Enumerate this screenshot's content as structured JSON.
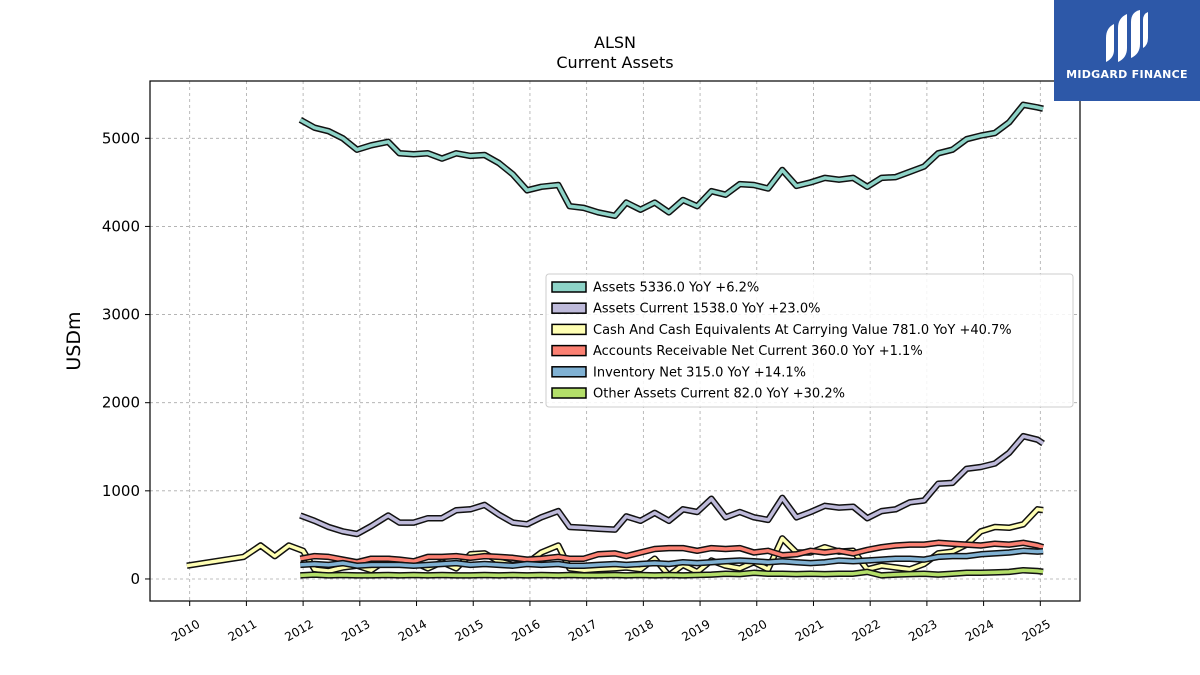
{
  "brand": {
    "name": "MIDGARD FINANCE",
    "color": "#2d58a8"
  },
  "chart_data": {
    "type": "line",
    "title": "ALSN",
    "subtitle": "Current  Assets",
    "ylabel": "USDm",
    "xlabel": "",
    "ylim": [
      -250,
      5650
    ],
    "xlim": [
      2009.3,
      2025.7
    ],
    "yticks": [
      0,
      1000,
      2000,
      3000,
      4000,
      5000
    ],
    "xticks": [
      "2010",
      "2011",
      "2012",
      "2013",
      "2014",
      "2015",
      "2016",
      "2017",
      "2018",
      "2019",
      "2020",
      "2021",
      "2022",
      "2023",
      "2024",
      "2025"
    ],
    "grid": true,
    "legend_position": "center-right",
    "series": [
      {
        "name": "Assets  5336.0 YoY +6.2%",
        "color": "#8dd3c7",
        "x": [
          2011.95,
          2012.2,
          2012.45,
          2012.7,
          2012.95,
          2013.2,
          2013.5,
          2013.7,
          2013.95,
          2014.2,
          2014.45,
          2014.7,
          2014.95,
          2015.2,
          2015.45,
          2015.7,
          2015.95,
          2016.2,
          2016.5,
          2016.7,
          2016.95,
          2017.2,
          2017.5,
          2017.7,
          2017.95,
          2018.2,
          2018.45,
          2018.7,
          2018.95,
          2019.2,
          2019.45,
          2019.7,
          2019.95,
          2020.2,
          2020.45,
          2020.7,
          2020.95,
          2021.2,
          2021.45,
          2021.7,
          2021.95,
          2022.2,
          2022.45,
          2022.7,
          2022.95,
          2023.2,
          2023.45,
          2023.7,
          2023.95,
          2024.2,
          2024.45,
          2024.7,
          2024.95,
          2025.05
        ],
        "values": [
          5210,
          5120,
          5080,
          5000,
          4870,
          4920,
          4960,
          4830,
          4820,
          4830,
          4770,
          4830,
          4800,
          4810,
          4720,
          4590,
          4410,
          4450,
          4470,
          4230,
          4210,
          4160,
          4120,
          4270,
          4190,
          4270,
          4160,
          4300,
          4230,
          4400,
          4360,
          4480,
          4470,
          4430,
          4640,
          4460,
          4500,
          4550,
          4530,
          4550,
          4450,
          4550,
          4560,
          4620,
          4680,
          4830,
          4870,
          4990,
          5030,
          5060,
          5180,
          5380,
          5350,
          5336
        ]
      },
      {
        "name": "Assets Current  1538.0 YoY +23.0%",
        "color": "#bebada",
        "x": [
          2011.95,
          2012.2,
          2012.45,
          2012.7,
          2012.95,
          2013.2,
          2013.5,
          2013.7,
          2013.95,
          2014.2,
          2014.45,
          2014.7,
          2014.95,
          2015.2,
          2015.45,
          2015.7,
          2015.95,
          2016.2,
          2016.5,
          2016.7,
          2016.95,
          2017.2,
          2017.5,
          2017.7,
          2017.95,
          2018.2,
          2018.45,
          2018.7,
          2018.95,
          2019.2,
          2019.45,
          2019.7,
          2019.95,
          2020.2,
          2020.45,
          2020.7,
          2020.95,
          2021.2,
          2021.45,
          2021.7,
          2021.95,
          2022.2,
          2022.45,
          2022.7,
          2022.95,
          2023.2,
          2023.45,
          2023.7,
          2023.95,
          2024.2,
          2024.45,
          2024.7,
          2024.95,
          2025.05
        ],
        "values": [
          720,
          660,
          590,
          540,
          510,
          600,
          720,
          640,
          640,
          690,
          690,
          780,
          790,
          840,
          730,
          640,
          620,
          700,
          770,
          590,
          580,
          570,
          560,
          710,
          660,
          750,
          660,
          790,
          760,
          910,
          700,
          760,
          700,
          670,
          920,
          700,
          760,
          830,
          810,
          820,
          690,
          770,
          790,
          870,
          890,
          1080,
          1090,
          1250,
          1270,
          1310,
          1430,
          1620,
          1580,
          1538
        ]
      },
      {
        "name": "Cash And Cash Equivalents At Carrying Value  781.0 YoY +40.7%",
        "color": "#ffffb3",
        "x": [
          2009.95,
          2010.95,
          2011.25,
          2011.5,
          2011.75,
          2012.0,
          2012.2,
          2012.45,
          2012.7,
          2012.95,
          2013.2,
          2013.5,
          2013.7,
          2013.95,
          2014.2,
          2014.45,
          2014.7,
          2014.95,
          2015.2,
          2015.45,
          2015.7,
          2015.95,
          2016.2,
          2016.5,
          2016.7,
          2016.95,
          2017.2,
          2017.5,
          2017.7,
          2017.95,
          2018.2,
          2018.45,
          2018.7,
          2018.95,
          2019.2,
          2019.45,
          2019.7,
          2019.95,
          2020.2,
          2020.45,
          2020.7,
          2020.95,
          2021.2,
          2021.45,
          2021.7,
          2021.95,
          2022.2,
          2022.45,
          2022.7,
          2022.95,
          2023.2,
          2023.45,
          2023.7,
          2023.95,
          2024.2,
          2024.45,
          2024.7,
          2024.95,
          2025.05
        ],
        "values": [
          150,
          250,
          380,
          260,
          380,
          320,
          110,
          90,
          130,
          150,
          100,
          230,
          200,
          190,
          120,
          190,
          120,
          280,
          290,
          200,
          160,
          180,
          300,
          380,
          120,
          100,
          110,
          120,
          130,
          110,
          230,
          40,
          160,
          80,
          210,
          150,
          120,
          190,
          110,
          460,
          300,
          300,
          360,
          310,
          320,
          110,
          150,
          130,
          110,
          170,
          290,
          310,
          390,
          540,
          590,
          580,
          620,
          790,
          781
        ]
      },
      {
        "name": "Accounts Receivable Net Current  360.0 YoY +1.1%",
        "color": "#fb8072",
        "x": [
          2011.95,
          2012.2,
          2012.45,
          2012.7,
          2012.95,
          2013.2,
          2013.5,
          2013.7,
          2013.95,
          2014.2,
          2014.45,
          2014.7,
          2014.95,
          2015.2,
          2015.45,
          2015.7,
          2015.95,
          2016.2,
          2016.5,
          2016.7,
          2016.95,
          2017.2,
          2017.5,
          2017.7,
          2017.95,
          2018.2,
          2018.45,
          2018.7,
          2018.95,
          2019.2,
          2019.45,
          2019.7,
          2019.95,
          2020.2,
          2020.45,
          2020.7,
          2020.95,
          2021.2,
          2021.45,
          2021.7,
          2021.95,
          2022.2,
          2022.45,
          2022.7,
          2022.95,
          2023.2,
          2023.45,
          2023.7,
          2023.95,
          2024.2,
          2024.45,
          2024.7,
          2024.95,
          2025.05
        ],
        "values": [
          230,
          260,
          250,
          220,
          190,
          230,
          230,
          220,
          200,
          250,
          250,
          260,
          240,
          260,
          250,
          240,
          220,
          230,
          250,
          230,
          230,
          280,
          290,
          260,
          300,
          340,
          350,
          350,
          320,
          350,
          340,
          350,
          300,
          320,
          270,
          280,
          320,
          300,
          320,
          290,
          330,
          360,
          380,
          390,
          390,
          410,
          400,
          390,
          380,
          400,
          390,
          410,
          380,
          360
        ]
      },
      {
        "name": "Inventory Net  315.0 YoY +14.1%",
        "color": "#80b1d3",
        "x": [
          2011.95,
          2012.2,
          2012.45,
          2012.7,
          2012.95,
          2013.2,
          2013.5,
          2013.7,
          2013.95,
          2014.2,
          2014.45,
          2014.7,
          2014.95,
          2015.2,
          2015.45,
          2015.7,
          2015.95,
          2016.2,
          2016.5,
          2016.7,
          2016.95,
          2017.2,
          2017.5,
          2017.7,
          2017.95,
          2018.2,
          2018.45,
          2018.7,
          2018.95,
          2019.2,
          2019.45,
          2019.7,
          2019.95,
          2020.2,
          2020.45,
          2020.7,
          2020.95,
          2021.2,
          2021.45,
          2021.7,
          2021.95,
          2022.2,
          2022.45,
          2022.7,
          2022.95,
          2023.2,
          2023.45,
          2023.7,
          2023.95,
          2024.2,
          2024.45,
          2024.7,
          2024.95,
          2025.05
        ],
        "values": [
          160,
          170,
          160,
          180,
          150,
          160,
          160,
          160,
          150,
          160,
          170,
          180,
          160,
          170,
          160,
          150,
          170,
          160,
          170,
          150,
          150,
          160,
          170,
          160,
          170,
          180,
          170,
          190,
          180,
          190,
          200,
          210,
          200,
          190,
          200,
          190,
          180,
          190,
          210,
          200,
          210,
          220,
          230,
          230,
          220,
          250,
          260,
          260,
          280,
          290,
          300,
          320,
          310,
          315
        ]
      },
      {
        "name": "Other Assets Current  82.0 YoY +30.2%",
        "color": "#b3de69",
        "x": [
          2011.95,
          2012.2,
          2012.45,
          2012.7,
          2012.95,
          2013.2,
          2013.5,
          2013.7,
          2013.95,
          2014.2,
          2014.45,
          2014.7,
          2014.95,
          2015.2,
          2015.45,
          2015.7,
          2015.95,
          2016.2,
          2016.5,
          2016.7,
          2016.95,
          2017.2,
          2017.5,
          2017.7,
          2017.95,
          2018.2,
          2018.45,
          2018.7,
          2018.95,
          2019.2,
          2019.45,
          2019.7,
          2019.95,
          2020.2,
          2020.45,
          2020.7,
          2020.95,
          2021.2,
          2021.45,
          2021.7,
          2021.95,
          2022.2,
          2022.45,
          2022.7,
          2022.95,
          2023.2,
          2023.45,
          2023.7,
          2023.95,
          2024.2,
          2024.45,
          2024.7,
          2024.95,
          2025.05
        ],
        "values": [
          40,
          50,
          40,
          45,
          40,
          40,
          45,
          40,
          45,
          40,
          45,
          40,
          40,
          45,
          40,
          45,
          40,
          45,
          40,
          45,
          40,
          40,
          45,
          40,
          45,
          40,
          45,
          40,
          45,
          50,
          60,
          55,
          70,
          60,
          60,
          55,
          60,
          55,
          60,
          60,
          80,
          40,
          50,
          55,
          60,
          50,
          60,
          70,
          70,
          75,
          80,
          100,
          90,
          82
        ]
      }
    ]
  }
}
